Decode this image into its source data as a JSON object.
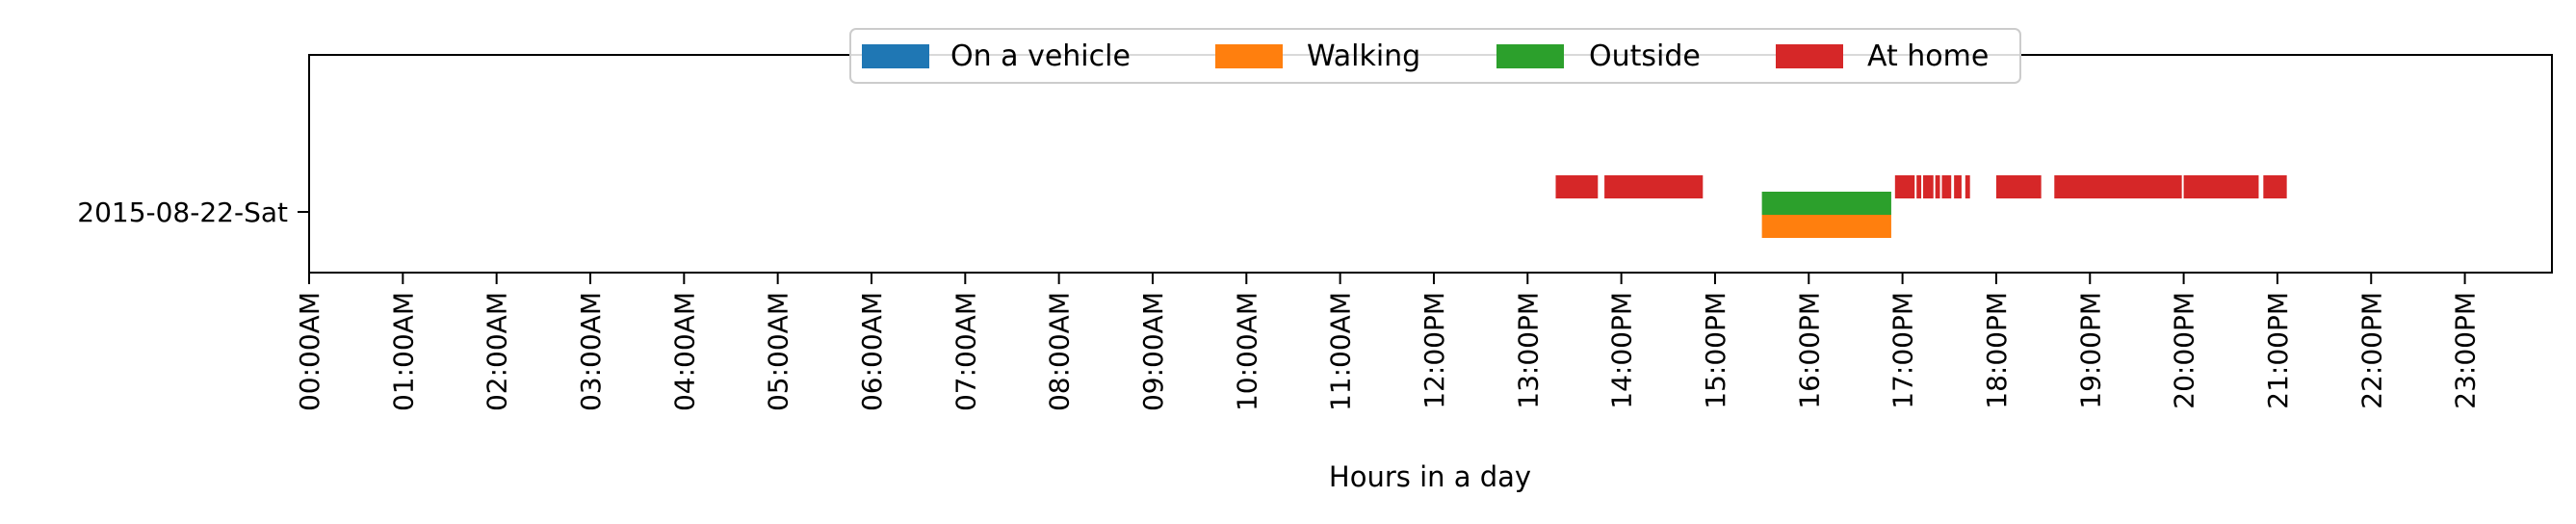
{
  "chart_data": {
    "type": "timeline",
    "xlabel": "Hours in a day",
    "xlim": [
      0,
      24
    ],
    "y_categories": [
      "2015-08-22-Sat"
    ],
    "x_ticks": [
      {
        "value": 0,
        "label": "00:00AM"
      },
      {
        "value": 1,
        "label": "01:00AM"
      },
      {
        "value": 2,
        "label": "02:00AM"
      },
      {
        "value": 3,
        "label": "03:00AM"
      },
      {
        "value": 4,
        "label": "04:00AM"
      },
      {
        "value": 5,
        "label": "05:00AM"
      },
      {
        "value": 6,
        "label": "06:00AM"
      },
      {
        "value": 7,
        "label": "07:00AM"
      },
      {
        "value": 8,
        "label": "08:00AM"
      },
      {
        "value": 9,
        "label": "09:00AM"
      },
      {
        "value": 10,
        "label": "10:00AM"
      },
      {
        "value": 11,
        "label": "11:00AM"
      },
      {
        "value": 12,
        "label": "12:00PM"
      },
      {
        "value": 13,
        "label": "13:00PM"
      },
      {
        "value": 14,
        "label": "14:00PM"
      },
      {
        "value": 15,
        "label": "15:00PM"
      },
      {
        "value": 16,
        "label": "16:00PM"
      },
      {
        "value": 17,
        "label": "17:00PM"
      },
      {
        "value": 18,
        "label": "18:00PM"
      },
      {
        "value": 19,
        "label": "19:00PM"
      },
      {
        "value": 20,
        "label": "20:00PM"
      },
      {
        "value": 21,
        "label": "21:00PM"
      },
      {
        "value": 22,
        "label": "22:00PM"
      },
      {
        "value": 23,
        "label": "23:00PM"
      }
    ],
    "legend_position": "top-center",
    "series": [
      {
        "name": "On a vehicle",
        "color": "#1f77b4",
        "intervals": []
      },
      {
        "name": "Walking",
        "color": "#ff7f0e",
        "intervals": [
          [
            15.5,
            16.88
          ]
        ]
      },
      {
        "name": "Outside",
        "color": "#2ca02c",
        "intervals": [
          [
            15.5,
            16.88
          ]
        ]
      },
      {
        "name": "At home",
        "color": "#d62728",
        "intervals": [
          [
            13.3,
            13.75
          ],
          [
            13.82,
            14.87
          ],
          [
            16.92,
            17.13
          ],
          [
            17.15,
            17.2
          ],
          [
            17.22,
            17.33
          ],
          [
            17.35,
            17.4
          ],
          [
            17.42,
            17.52
          ],
          [
            17.55,
            17.63
          ],
          [
            17.67,
            17.72
          ],
          [
            18.0,
            18.48
          ],
          [
            18.62,
            19.98
          ],
          [
            20.0,
            20.8
          ],
          [
            20.85,
            21.1
          ]
        ]
      }
    ]
  }
}
